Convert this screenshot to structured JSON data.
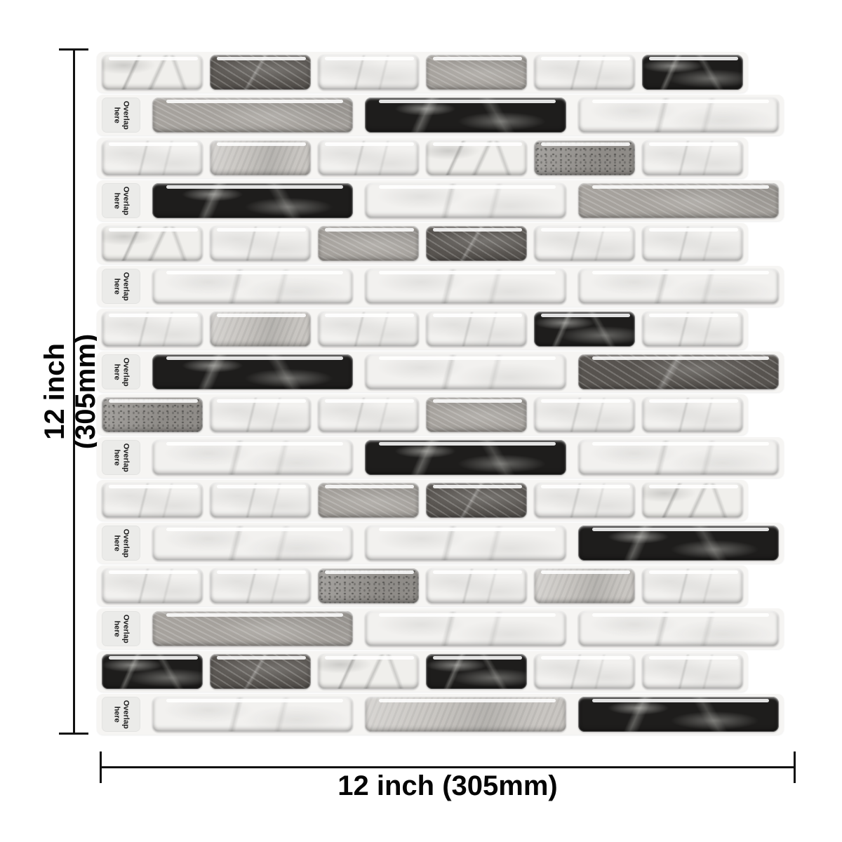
{
  "page": {
    "background": "#ffffff",
    "annotation_line_color": "#111111"
  },
  "dimensions": {
    "left_label": "12 inch (305mm)",
    "bottom_label": "12 inch (305mm)"
  },
  "tile": {
    "overlap_label": "Overlap\nhere",
    "panel_color": "#f6f5f3",
    "tab_color": "#ebebe9",
    "brick_colors": {
      "white": "#f2f1ef",
      "whitevein": "#f0efec",
      "lightgray": "#c9c6c2",
      "gray": "#a6a29d",
      "darkgray": "#57534f",
      "black": "#1e1d1c",
      "speckle": "#8f8c88"
    },
    "rows": [
      {
        "type": "short",
        "bricks": [
          "whitevein",
          "darkgray",
          "white",
          "gray",
          "white",
          "black"
        ]
      },
      {
        "type": "long",
        "bricks": [
          "gray",
          "black",
          "white"
        ]
      },
      {
        "type": "short",
        "bricks": [
          "white",
          "lightgray",
          "white",
          "whitevein",
          "speckle",
          "white"
        ]
      },
      {
        "type": "long",
        "bricks": [
          "black",
          "white",
          "gray"
        ]
      },
      {
        "type": "short",
        "bricks": [
          "whitevein",
          "white",
          "gray",
          "darkgray",
          "white",
          "white"
        ]
      },
      {
        "type": "long",
        "bricks": [
          "white",
          "white",
          "white"
        ]
      },
      {
        "type": "short",
        "bricks": [
          "white",
          "lightgray",
          "white",
          "white",
          "black",
          "white"
        ]
      },
      {
        "type": "long",
        "bricks": [
          "black",
          "white",
          "darkgray"
        ]
      },
      {
        "type": "short",
        "bricks": [
          "speckle",
          "white",
          "white",
          "gray",
          "white",
          "white"
        ]
      },
      {
        "type": "long",
        "bricks": [
          "white",
          "black",
          "white"
        ]
      },
      {
        "type": "short",
        "bricks": [
          "white",
          "white",
          "gray",
          "darkgray",
          "white",
          "whitevein"
        ]
      },
      {
        "type": "long",
        "bricks": [
          "white",
          "white",
          "black"
        ]
      },
      {
        "type": "short",
        "bricks": [
          "white",
          "white",
          "speckle",
          "white",
          "lightgray",
          "white"
        ]
      },
      {
        "type": "long",
        "bricks": [
          "gray",
          "white",
          "white"
        ]
      },
      {
        "type": "short",
        "bricks": [
          "black",
          "darkgray",
          "whitevein",
          "black",
          "white",
          "white"
        ]
      },
      {
        "type": "long",
        "bricks": [
          "white",
          "lightgray",
          "black"
        ]
      }
    ]
  }
}
